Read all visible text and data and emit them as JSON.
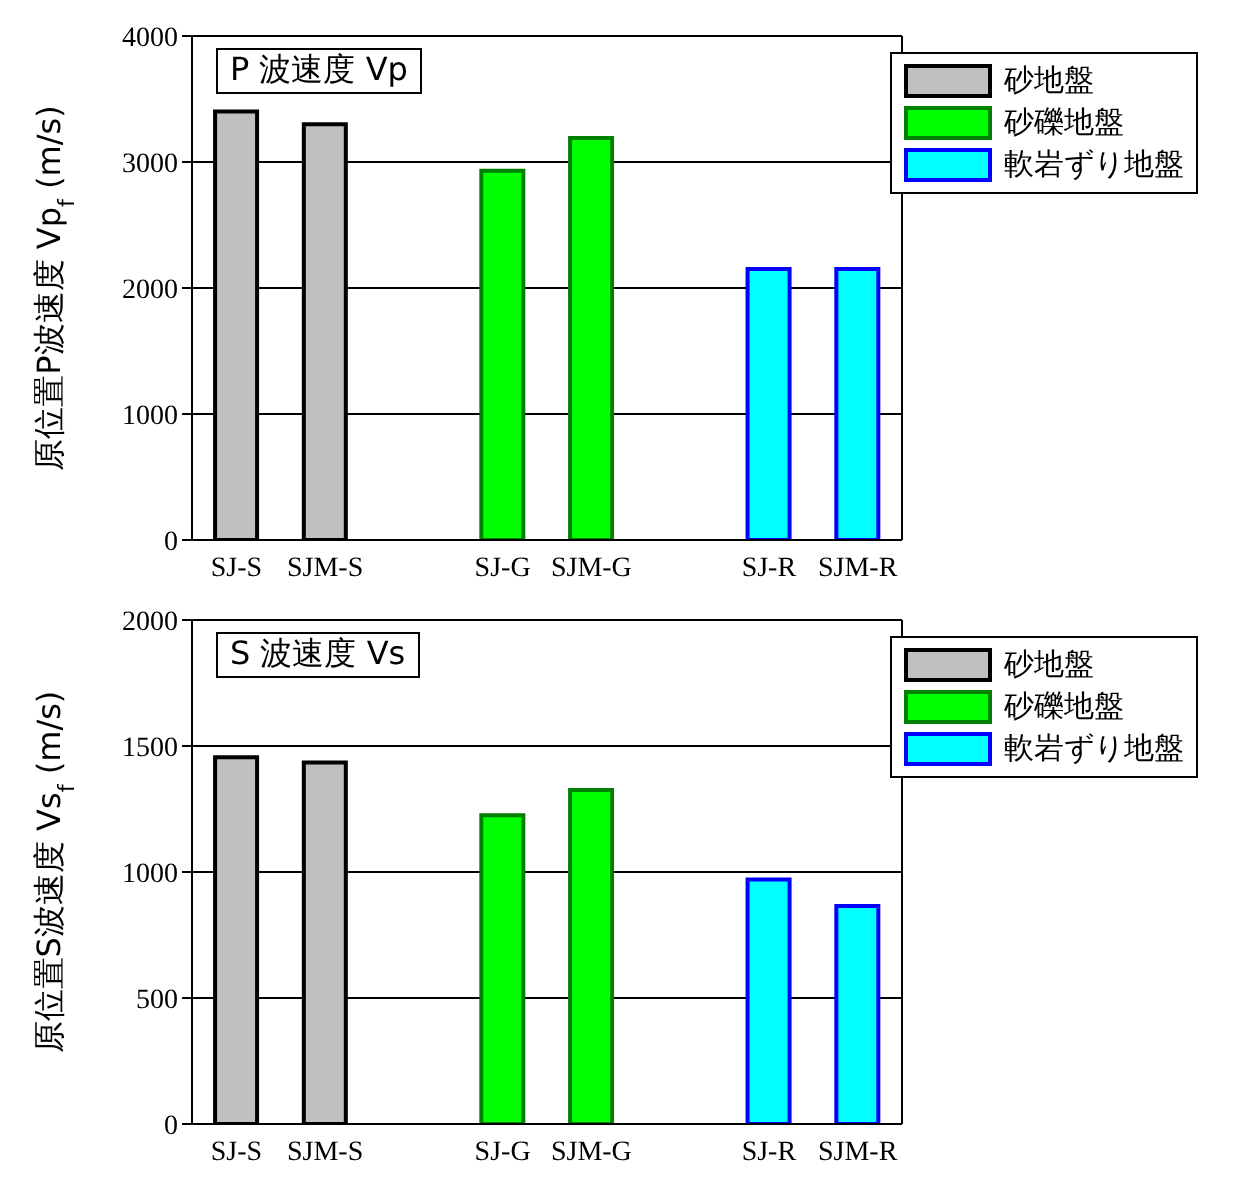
{
  "chart_data": [
    {
      "type": "bar",
      "title": "P 波速度 Vp",
      "ylabel": "原位置P波速度 Vp$_{f}$ (m/s)",
      "categories": [
        "SJ-S",
        "SJM-S",
        null,
        "SJ-G",
        "SJM-G",
        null,
        "SJ-R",
        "SJM-R"
      ],
      "series": [
        {
          "name": "砂地盤",
          "color": "#c0c0c0",
          "values": [
            3400,
            3300,
            null,
            null,
            null,
            null,
            null,
            null
          ]
        },
        {
          "name": "砂礫地盤",
          "color": "#00ff00",
          "values": [
            null,
            null,
            null,
            2930,
            3190,
            null,
            null,
            null
          ]
        },
        {
          "name": "軟岩ずり地盤",
          "color": "#00ffff",
          "values": [
            null,
            null,
            null,
            null,
            null,
            null,
            2150,
            2150
          ]
        }
      ],
      "ylim": [
        0,
        4000
      ],
      "yticks": [
        0,
        1000,
        2000,
        3000,
        4000
      ],
      "grid": "y",
      "legend": "top right"
    },
    {
      "type": "bar",
      "title": "S 波速度 Vs",
      "ylabel": "原位置S波速度 Vs$_{f}$ (m/s)",
      "categories": [
        "SJ-S",
        "SJM-S",
        null,
        "SJ-G",
        "SJM-G",
        null,
        "SJ-R",
        "SJM-R"
      ],
      "series": [
        {
          "name": "砂地盤",
          "color": "#c0c0c0",
          "values": [
            1455,
            1435,
            null,
            null,
            null,
            null,
            null,
            null
          ]
        },
        {
          "name": "砂礫地盤",
          "color": "#00ff00",
          "values": [
            null,
            null,
            null,
            1225,
            1325,
            null,
            null,
            null
          ]
        },
        {
          "name": "軟岩ずり地盤",
          "color": "#00ffff",
          "values": [
            null,
            null,
            null,
            null,
            null,
            null,
            970,
            865
          ]
        }
      ],
      "ylim": [
        0,
        2000
      ],
      "yticks": [
        0,
        500,
        1000,
        1500,
        2000
      ],
      "grid": "y",
      "legend": "top right"
    }
  ]
}
